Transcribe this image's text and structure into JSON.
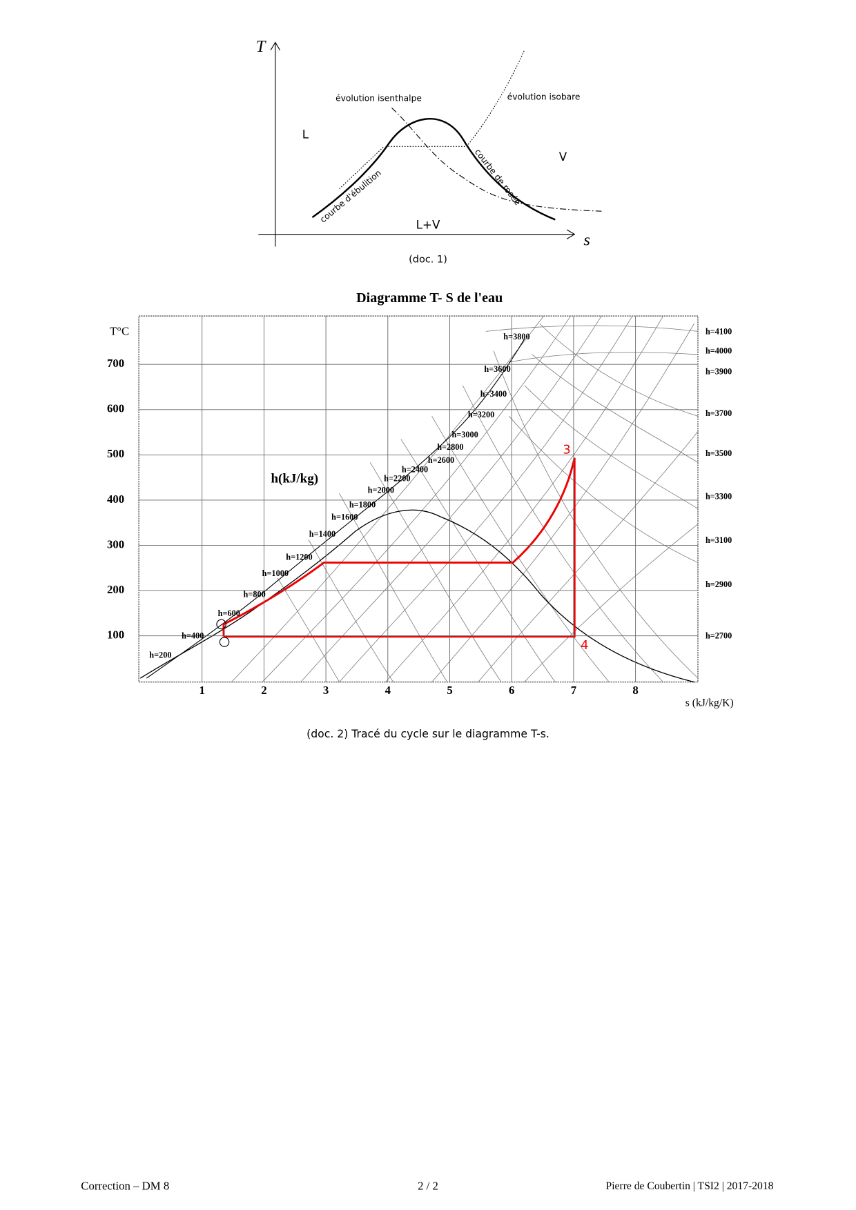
{
  "doc1": {
    "axis_y": "T",
    "axis_x": "s",
    "region_liquid": "L",
    "region_vapor": "V",
    "region_mixture": "L+V",
    "label_isenthalpe": "évolution isenthalpe",
    "label_isobare": "évolution isobare",
    "label_ebullition": "courbe d'ébulition",
    "label_rosee": "courbe de rosée",
    "caption": "(doc. 1)"
  },
  "doc2": {
    "title": "Diagramme T- S de l'eau",
    "y_axis_label": "T°C",
    "x_axis_label": "s (kJ/kg/K)",
    "h_unit_label": "h(kJ/kg)",
    "yticks": [
      "100",
      "200",
      "300",
      "400",
      "500",
      "600",
      "700"
    ],
    "xticks": [
      "1",
      "2",
      "3",
      "4",
      "5",
      "6",
      "7",
      "8"
    ],
    "left_h_labels": [
      "h=200",
      "h=400",
      "h=600",
      "h=800",
      "h=1000",
      "h=1200",
      "h=1400",
      "h=1600",
      "h=1800",
      "h=2000",
      "h=2200",
      "h=2400",
      "h=2600",
      "h=2800",
      "h=3000",
      "h=3200",
      "h=3400",
      "h=3600",
      "h=3800"
    ],
    "right_h_labels": [
      "h=4100",
      "h=4000",
      "h=3900",
      "h=3700",
      "h=3500",
      "h=3300",
      "h=3100",
      "h=2900",
      "h=2700"
    ],
    "point_3": "3",
    "point_4": "4",
    "caption": "(doc. 2) Tracé du cycle sur le diagramme T-s."
  },
  "footer": {
    "left": "Correction – DM 8",
    "center": "2 / 2",
    "right": "Pierre de Coubertin | TSI2 | 2017-2018"
  }
}
